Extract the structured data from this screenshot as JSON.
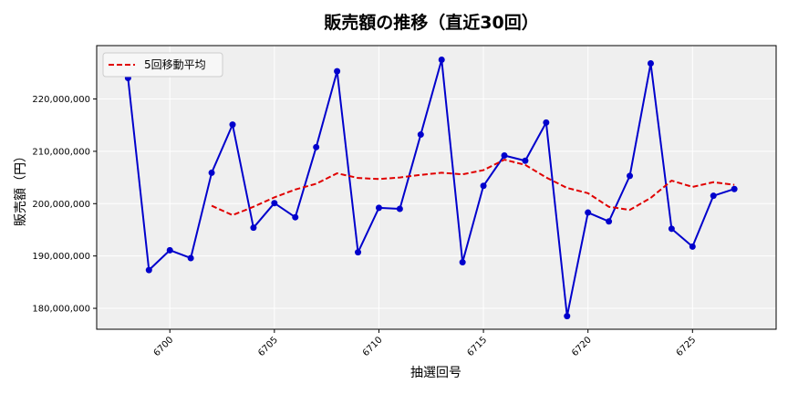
{
  "chart_data": {
    "type": "line",
    "title": "販売額の推移（直近30回）",
    "xlabel": "抽選回号",
    "ylabel": "販売額（円）",
    "xlim": [
      6696.5,
      6729.0
    ],
    "ylim": [
      176000000,
      230200000
    ],
    "x_ticks": [
      6700,
      6705,
      6710,
      6715,
      6720,
      6725
    ],
    "y_ticks": [
      180000000,
      190000000,
      200000000,
      210000000,
      220000000
    ],
    "y_tick_labels": [
      "180,000,000",
      "190,000,000",
      "200,000,000",
      "210,000,000",
      "220,000,000"
    ],
    "grid": true,
    "legend_position": "upper-left",
    "colors": {
      "sales": "#0000cc",
      "moving_avg": "#e00000",
      "plot_bg": "#efefef"
    },
    "x": [
      6698,
      6699,
      6700,
      6701,
      6702,
      6703,
      6704,
      6705,
      6706,
      6707,
      6708,
      6709,
      6710,
      6711,
      6712,
      6713,
      6714,
      6715,
      6716,
      6717,
      6718,
      6719,
      6720,
      6721,
      6722,
      6723,
      6724,
      6725,
      6726,
      6727
    ],
    "series": [
      {
        "key": "sales",
        "style": "solid-with-markers",
        "values": [
          224000000,
          187300000,
          191100000,
          189600000,
          205900000,
          215100000,
          195400000,
          200100000,
          197400000,
          210800000,
          225300000,
          190700000,
          199200000,
          199000000,
          213200000,
          227500000,
          188800000,
          203400000,
          209200000,
          208200000,
          215500000,
          178500000,
          198300000,
          196600000,
          205300000,
          226800000,
          195200000,
          191800000,
          201500000,
          202800000
        ]
      },
      {
        "key": "moving_avg",
        "name": "5回移動平均",
        "style": "dashed",
        "values": [
          null,
          null,
          null,
          null,
          199600000,
          197800000,
          199400000,
          201200000,
          202700000,
          203800000,
          205800000,
          204900000,
          204700000,
          205000000,
          205500000,
          205900000,
          205600000,
          206400000,
          208400000,
          207400000,
          205000000,
          203000000,
          202000000,
          199400000,
          198800000,
          201100000,
          204400000,
          203200000,
          204100000,
          203600000
        ]
      }
    ]
  }
}
